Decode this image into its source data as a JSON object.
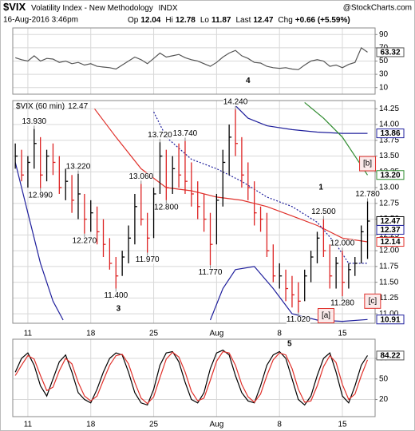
{
  "header": {
    "symbol": "$VIX",
    "name": "Volatility Index - New Methodology",
    "exchange": "INDX",
    "date": "16-Aug-2016 3:46pm",
    "credit": "@StockCharts.com",
    "quote": [
      {
        "label": "Op",
        "value": 12.04
      },
      {
        "label": "Hi",
        "value": 12.78
      },
      {
        "label": "Lo",
        "value": 11.87
      },
      {
        "label": "Last",
        "value": 12.47
      },
      {
        "label": "Chg",
        "value": 0.66,
        "value_label": "+0.66 (+5.59%)"
      }
    ]
  },
  "chart_data": [
    {
      "type": "line",
      "xlim": [
        -1.2,
        27.6
      ],
      "ylim": [
        0,
        100
      ],
      "yticks": [
        10,
        30,
        50,
        70,
        90
      ],
      "grid": true,
      "xlabels": false,
      "xticks": [
        {
          "value": 0,
          "label": "11"
        },
        {
          "value": 5,
          "label": "18"
        },
        {
          "value": 10,
          "label": "25"
        },
        {
          "value": 15,
          "label": "Aug"
        },
        {
          "value": 20,
          "label": "8"
        },
        {
          "value": 25,
          "label": "15"
        }
      ],
      "x": [
        -1,
        -0.5,
        0,
        0.5,
        1,
        1.5,
        2,
        2.5,
        3,
        3.5,
        4,
        4.5,
        5,
        5.5,
        6,
        6.5,
        7,
        7.5,
        8,
        8.5,
        9,
        9.5,
        10,
        10.5,
        11,
        11.5,
        12,
        12.5,
        13,
        13.5,
        14,
        14.5,
        15,
        15.5,
        16,
        16.5,
        17,
        17.5,
        18,
        18.5,
        19,
        19.5,
        20,
        20.5,
        21,
        21.5,
        22,
        22.5,
        23,
        23.5,
        24,
        24.5,
        25,
        25.5,
        26,
        26.5,
        27
      ],
      "series": [
        {
          "color": "#555555",
          "values": [
            55,
            52,
            50,
            58,
            50,
            54,
            53,
            48,
            50,
            46,
            48,
            44,
            46,
            42,
            41,
            40,
            38,
            44,
            50,
            56,
            52,
            46,
            54,
            62,
            56,
            58,
            60,
            55,
            52,
            50,
            46,
            42,
            48,
            56,
            62,
            66,
            58,
            54,
            48,
            47,
            42,
            40,
            39,
            40,
            38,
            37,
            44,
            50,
            52,
            50,
            42,
            44,
            40,
            45,
            48,
            70,
            63.32
          ]
        }
      ],
      "value_boxes": [
        {
          "value": 63.32,
          "color": "#555555"
        }
      ],
      "annotations": [
        {
          "text": "4",
          "x": 17.5,
          "y": 20,
          "color": "#8a2be2",
          "boxed": false
        }
      ]
    },
    {
      "type": "ohlc",
      "legend": "$VIX (60 min)",
      "legend_value": 12.47,
      "xlim": [
        -1.2,
        27.6
      ],
      "ylim": [
        10.85,
        14.38
      ],
      "grid": true,
      "xlabels": true,
      "yticks": [
        {
          "value": 11,
          "label": "11.00"
        },
        11.25,
        {
          "value": 11.5,
          "label": "11.50"
        },
        11.75,
        {
          "value": 12,
          "label": "12.00"
        },
        12.25,
        {
          "value": 12.5,
          "label": "12.50"
        },
        12.75,
        {
          "value": 13,
          "label": "13.00"
        },
        13.25,
        {
          "value": 13.5,
          "label": "13.50"
        },
        13.75,
        {
          "value": 14,
          "label": "14.00"
        },
        14.25
      ],
      "xticks": [
        {
          "value": 0,
          "label": "11"
        },
        {
          "value": 5,
          "label": "18"
        },
        {
          "value": 10,
          "label": "25"
        },
        {
          "value": 15,
          "label": "Aug"
        },
        {
          "value": 20,
          "label": "8"
        },
        {
          "value": 25,
          "label": "15"
        }
      ],
      "x": [
        -1,
        -0.5,
        0,
        0.5,
        1,
        1.5,
        2,
        2.5,
        3,
        3.5,
        4,
        4.5,
        5,
        5.5,
        6,
        6.5,
        7,
        7.5,
        8,
        8.5,
        9,
        9.5,
        10,
        10.5,
        11,
        11.5,
        12,
        12.5,
        13,
        13.5,
        14,
        14.5,
        15,
        15.5,
        16,
        16.5,
        17,
        17.5,
        18,
        18.5,
        19,
        19.5,
        20,
        20.5,
        21,
        21.5,
        22,
        22.5,
        23,
        23.5,
        24,
        24.5,
        25,
        25.5,
        26,
        26.5,
        27
      ],
      "high": [
        13.7,
        13.6,
        13.5,
        13.93,
        13.8,
        13.6,
        13.7,
        13.5,
        13.3,
        13.2,
        13.22,
        12.9,
        12.8,
        12.7,
        12.5,
        12.2,
        11.9,
        12.0,
        12.4,
        12.9,
        13.06,
        12.6,
        13.0,
        13.72,
        13.6,
        13.5,
        13.7,
        13.74,
        13.4,
        13.1,
        12.9,
        12.6,
        12.9,
        13.6,
        14.0,
        14.24,
        13.8,
        13.4,
        13.1,
        12.7,
        12.6,
        12.1,
        11.8,
        11.7,
        11.6,
        11.5,
        11.7,
        12.0,
        12.3,
        12.5,
        12.1,
        11.9,
        12.0,
        11.8,
        11.9,
        12.4,
        12.78
      ],
      "low": [
        13.3,
        13.1,
        13.0,
        13.3,
        12.99,
        13.1,
        13.2,
        12.9,
        12.8,
        12.6,
        12.5,
        12.27,
        12.3,
        12.1,
        11.9,
        11.7,
        11.4,
        11.6,
        11.8,
        12.1,
        12.4,
        11.97,
        12.2,
        12.9,
        12.8,
        12.9,
        13.0,
        12.9,
        12.7,
        12.5,
        12.3,
        11.77,
        12.1,
        12.7,
        13.2,
        13.5,
        13.0,
        12.8,
        12.4,
        12.3,
        11.9,
        11.5,
        11.4,
        11.2,
        11.1,
        11.02,
        11.2,
        11.5,
        11.8,
        11.9,
        11.4,
        11.4,
        11.28,
        11.4,
        11.6,
        11.8,
        11.87
      ],
      "close": [
        13.5,
        13.2,
        13.4,
        13.7,
        13.2,
        13.5,
        13.4,
        13.0,
        13.1,
        12.8,
        12.9,
        12.5,
        12.6,
        12.3,
        12.1,
        11.8,
        11.6,
        11.9,
        12.2,
        12.7,
        12.5,
        12.2,
        12.9,
        13.5,
        13.0,
        13.3,
        13.2,
        13.1,
        12.9,
        12.7,
        12.5,
        12.1,
        12.8,
        13.4,
        13.8,
        13.7,
        13.2,
        13.0,
        12.6,
        12.5,
        12.0,
        11.6,
        11.6,
        11.4,
        11.3,
        11.2,
        11.6,
        11.9,
        12.2,
        12.0,
        11.6,
        11.8,
        11.5,
        11.7,
        11.8,
        12.3,
        12.47
      ],
      "overlays": [
        {
          "color": "#1f1f9c",
          "dashed": false,
          "x": [
            16.5,
            17.5,
            19,
            21,
            23,
            25,
            27
          ],
          "values": [
            14.3,
            14.1,
            13.98,
            13.92,
            13.88,
            13.86,
            13.86
          ]
        },
        {
          "color": "#1f1f9c",
          "dashed": false,
          "x": [
            -1,
            0,
            1,
            2,
            2.8,
            8,
            14.5,
            15.5,
            16.5,
            18,
            19.5,
            21,
            23,
            25,
            27
          ],
          "values": [
            13.4,
            12.6,
            11.8,
            11.2,
            10.9,
            null,
            10.9,
            11.4,
            11.7,
            11.75,
            11.4,
            11.0,
            10.9,
            10.88,
            10.91
          ]
        },
        {
          "color": "#e0312b",
          "dashed": false,
          "x": [
            5.3,
            7,
            9,
            11,
            13,
            15,
            17,
            19,
            21,
            23,
            25,
            27
          ],
          "values": [
            14.25,
            13.8,
            13.3,
            13.0,
            12.95,
            12.85,
            12.8,
            12.7,
            12.55,
            12.4,
            12.2,
            12.14
          ]
        },
        {
          "color": "#2e8b2e",
          "dashed": false,
          "x": [
            22,
            23.5,
            25,
            26,
            27
          ],
          "values": [
            14.35,
            14.1,
            13.8,
            13.5,
            13.2
          ]
        },
        {
          "color": "#1f1f9c",
          "dashed": true,
          "x": [
            10,
            11,
            13,
            15,
            17,
            19,
            21,
            23,
            24.5,
            25.5,
            27
          ],
          "values": [
            14.2,
            13.8,
            13.45,
            13.3,
            13.1,
            12.85,
            12.7,
            12.45,
            12.1,
            11.8,
            11.8
          ]
        }
      ],
      "price_labels": [
        {
          "x": 0.5,
          "value": 13.93,
          "label": "13.930"
        },
        {
          "x": 1,
          "value": 12.99,
          "label": "12.990"
        },
        {
          "x": 4,
          "value": 13.22,
          "label": "13.220"
        },
        {
          "x": 4.5,
          "value": 12.27,
          "label": "12.270"
        },
        {
          "x": 7,
          "value": 11.4,
          "label": "11.400"
        },
        {
          "x": 9,
          "value": 13.06,
          "label": "13.060"
        },
        {
          "x": 9.5,
          "value": 11.97,
          "label": "11.970"
        },
        {
          "x": 10.5,
          "value": 13.72,
          "label": "13.720"
        },
        {
          "x": 11,
          "value": 12.8,
          "label": "12.800"
        },
        {
          "x": 12.5,
          "value": 13.74,
          "label": "13.740"
        },
        {
          "x": 14.5,
          "value": 11.77,
          "label": "11.770"
        },
        {
          "x": 16.5,
          "value": 14.24,
          "label": "14.240"
        },
        {
          "x": 21.5,
          "value": 11.02,
          "label": "11.020"
        },
        {
          "x": 23.5,
          "value": 12.5,
          "label": "12.500"
        },
        {
          "x": 25,
          "value": 12,
          "label": "12.000"
        },
        {
          "x": 25,
          "value": 11.28,
          "label": "11.280"
        },
        {
          "x": 27,
          "value": 12.78,
          "label": "12.780"
        }
      ],
      "value_boxes": [
        {
          "value": 13.86,
          "color": "#1f1f9c"
        },
        {
          "value": 13.2,
          "label": "13.20",
          "color": "#2e8b2e"
        },
        {
          "value": 12.47,
          "color": "#000000"
        },
        {
          "value": 12.37,
          "color": "#1f1f9c"
        },
        {
          "value": 12.14,
          "color": "#e0312b"
        },
        {
          "value": 10.91,
          "color": "#1f1f9c"
        }
      ],
      "annotations": [
        {
          "text": "3",
          "x": 7.2,
          "y": 11.08,
          "color": "#8a2be2",
          "boxed": false
        },
        {
          "text": "1",
          "x": 23.3,
          "y": 13.0,
          "color": "#8a2be2",
          "boxed": false
        },
        {
          "text": "[b]",
          "x": 27,
          "y": 13.38,
          "color": "#e0312b",
          "boxed": true
        },
        {
          "text": "[a]",
          "x": 23.7,
          "y": 10.97,
          "color": "#e0312b",
          "boxed": true
        },
        {
          "text": "[c]",
          "x": 27.4,
          "y": 11.2,
          "color": "#e0312b",
          "boxed": true
        }
      ]
    },
    {
      "type": "line",
      "xlim": [
        -1.2,
        27.6
      ],
      "ylim": [
        -5,
        108
      ],
      "yticks": [
        20,
        50,
        80
      ],
      "grid": true,
      "xlabels": true,
      "xticks": [
        {
          "value": 0,
          "label": "11"
        },
        {
          "value": 5,
          "label": "18"
        },
        {
          "value": 10,
          "label": "25"
        },
        {
          "value": 15,
          "label": "Aug"
        },
        {
          "value": 20,
          "label": "8"
        },
        {
          "value": 25,
          "label": "15"
        }
      ],
      "x": [
        -1,
        -0.5,
        0,
        0.5,
        1,
        1.5,
        2,
        2.5,
        3,
        3.5,
        4,
        4.5,
        5,
        5.5,
        6,
        6.5,
        7,
        7.5,
        8,
        8.5,
        9,
        9.5,
        10,
        10.5,
        11,
        11.5,
        12,
        12.5,
        13,
        13.5,
        14,
        14.5,
        15,
        15.5,
        16,
        16.5,
        17,
        17.5,
        18,
        18.5,
        19,
        19.5,
        20,
        20.5,
        21,
        21.5,
        22,
        22.5,
        23,
        23.5,
        24,
        24.5,
        25,
        25.5,
        26,
        26.5,
        27
      ],
      "series": [
        {
          "color": "#000000",
          "values": [
            60,
            80,
            88,
            70,
            40,
            25,
            50,
            75,
            85,
            60,
            30,
            20,
            15,
            35,
            60,
            80,
            88,
            85,
            60,
            30,
            15,
            12,
            35,
            70,
            88,
            90,
            75,
            45,
            20,
            15,
            30,
            65,
            88,
            92,
            85,
            55,
            30,
            18,
            15,
            40,
            70,
            85,
            90,
            80,
            50,
            20,
            12,
            25,
            55,
            80,
            88,
            60,
            25,
            15,
            40,
            70,
            84.22
          ]
        },
        {
          "color": "#e0312b",
          "values": [
            55,
            70,
            84,
            79,
            55,
            33,
            38,
            62,
            80,
            72,
            45,
            25,
            18,
            25,
            48,
            70,
            84,
            86,
            72,
            45,
            22,
            14,
            24,
            52,
            79,
            89,
            82,
            60,
            32,
            18,
            22,
            48,
            76,
            90,
            88,
            70,
            42,
            24,
            16,
            28,
            55,
            78,
            88,
            85,
            65,
            35,
            16,
            18,
            40,
            68,
            84,
            74,
            42,
            20,
            28,
            55,
            78
          ]
        }
      ],
      "value_boxes": [
        {
          "value": 84.22,
          "color": "#555555"
        }
      ],
      "annotations": [
        {
          "text": "5",
          "x": 20.8,
          "y": 101,
          "color": "#8a2be2",
          "boxed": false
        }
      ]
    }
  ]
}
